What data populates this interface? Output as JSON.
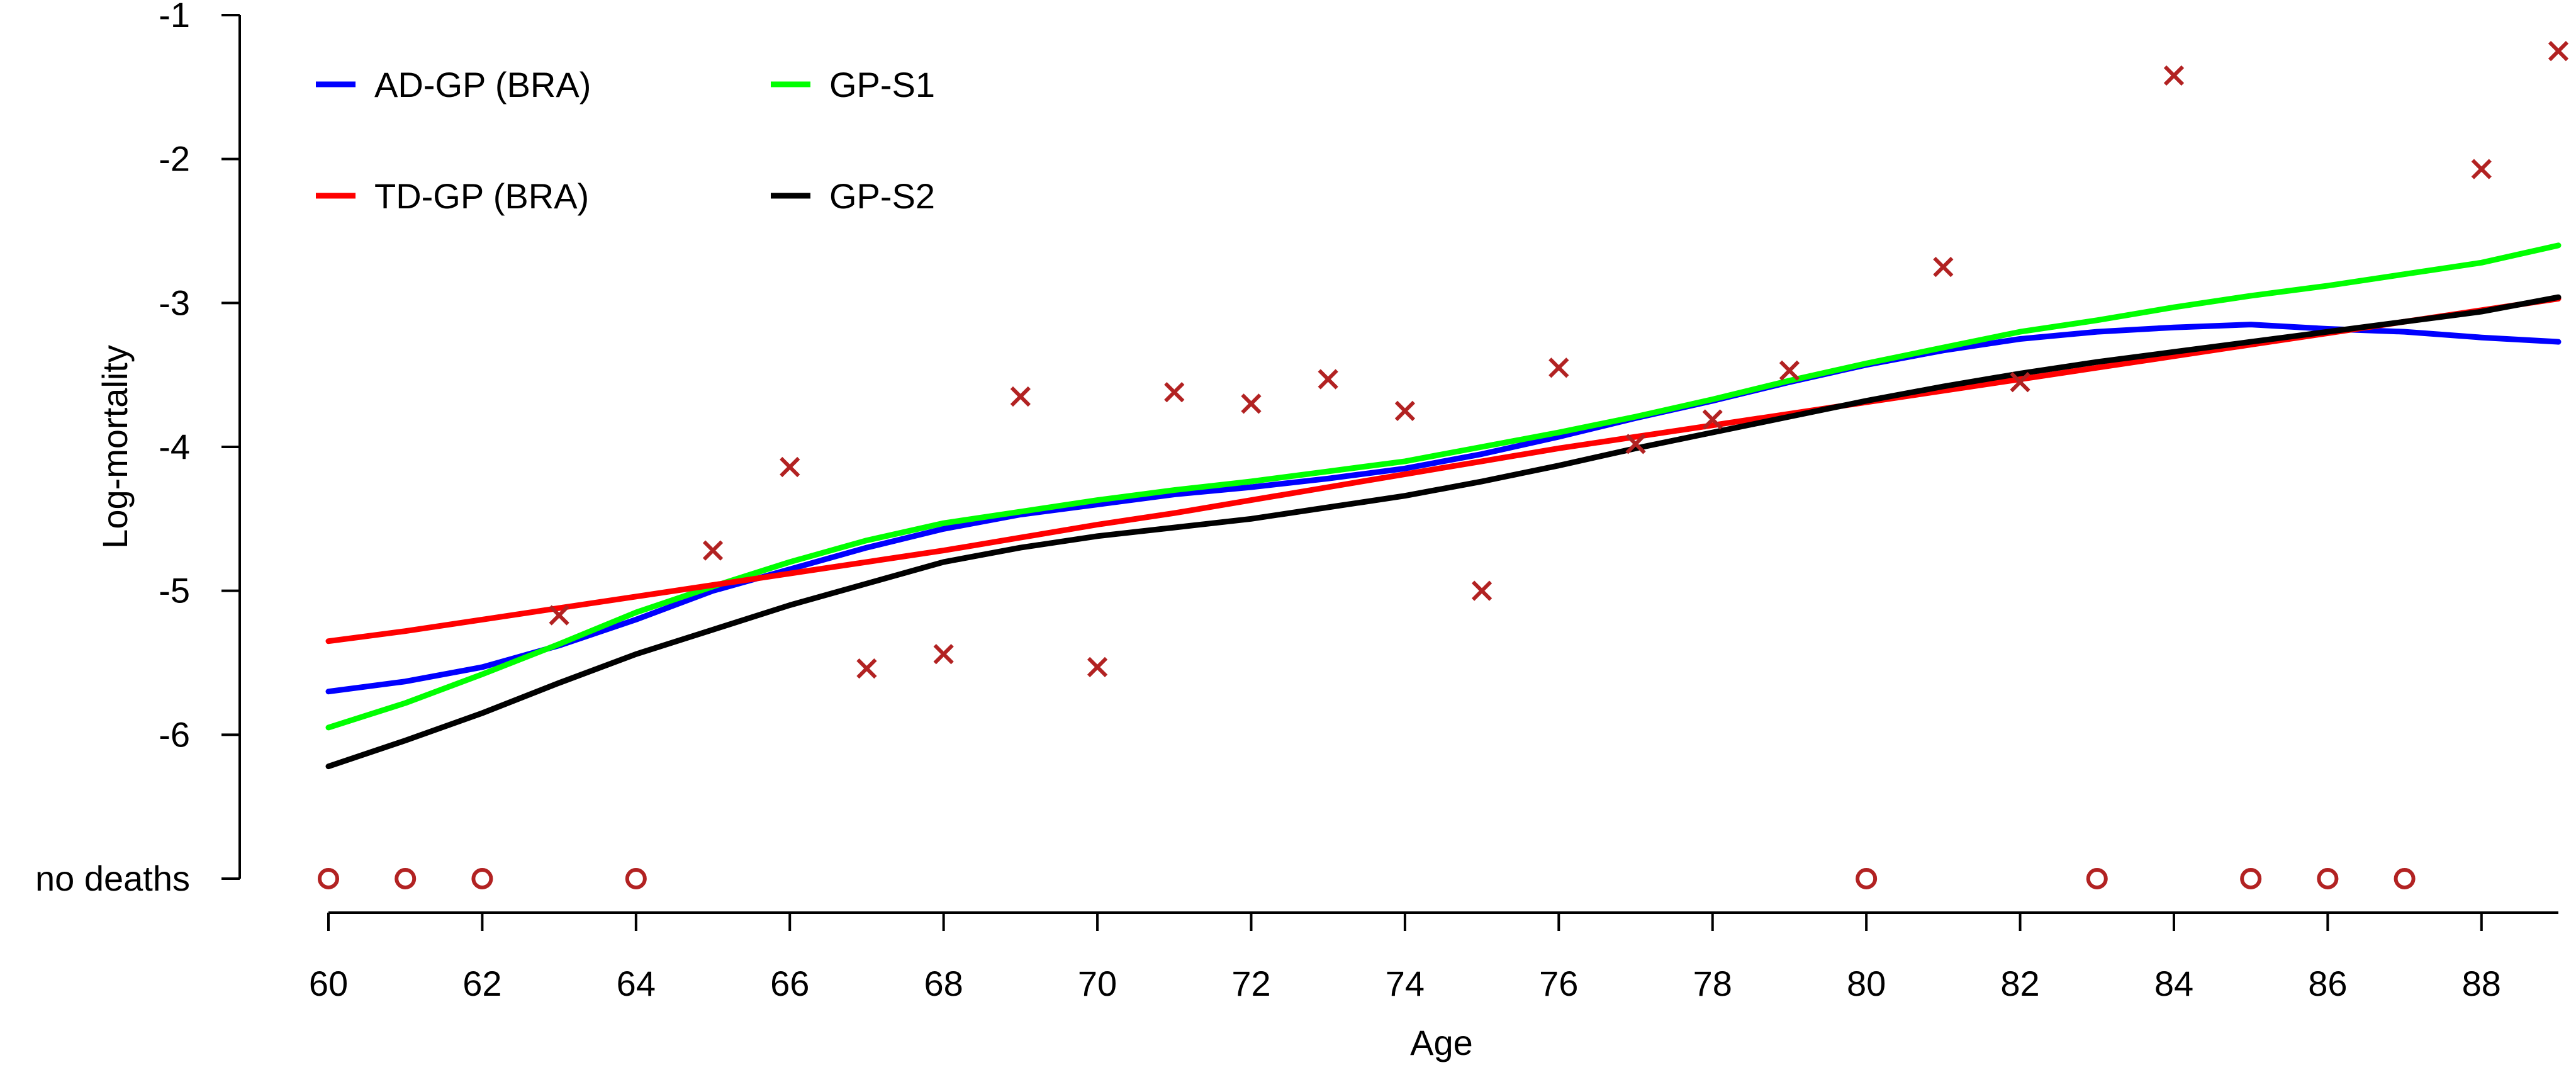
{
  "chart_data": {
    "type": "line",
    "xlabel": "Age",
    "ylabel": "Log-mortality",
    "xlim": [
      60,
      89
    ],
    "ylim": [
      -7,
      -1
    ],
    "x_ticks": [
      60,
      62,
      64,
      66,
      68,
      70,
      72,
      74,
      76,
      78,
      80,
      82,
      84,
      86,
      88
    ],
    "x_tick_labels": [
      "60",
      "62",
      "64",
      "66",
      "68",
      "70",
      "72",
      "74",
      "76",
      "78",
      "80",
      "82",
      "84",
      "86",
      "88"
    ],
    "y_ticks": [
      -1,
      -2,
      -3,
      -4,
      -5,
      -6,
      -7
    ],
    "y_tick_labels": [
      "-1",
      "-2",
      "-3",
      "-4",
      "-5",
      "-6",
      "no deaths"
    ],
    "grid": false,
    "legend_position": "top-left",
    "series": [
      {
        "name": "AD-GP (BRA)",
        "color": "#0000ff",
        "x": [
          60,
          61,
          62,
          63,
          64,
          65,
          66,
          67,
          68,
          69,
          70,
          71,
          72,
          73,
          74,
          75,
          76,
          77,
          78,
          79,
          80,
          81,
          82,
          83,
          84,
          85,
          86,
          87,
          88,
          89
        ],
        "y": [
          -5.7,
          -5.63,
          -5.53,
          -5.38,
          -5.2,
          -5.0,
          -4.85,
          -4.7,
          -4.57,
          -4.47,
          -4.4,
          -4.33,
          -4.28,
          -4.22,
          -4.15,
          -4.05,
          -3.93,
          -3.8,
          -3.68,
          -3.55,
          -3.43,
          -3.33,
          -3.25,
          -3.2,
          -3.17,
          -3.15,
          -3.18,
          -3.2,
          -3.24,
          -3.27
        ]
      },
      {
        "name": "GP-S1",
        "color": "#00ff00",
        "x": [
          60,
          61,
          62,
          63,
          64,
          65,
          66,
          67,
          68,
          69,
          70,
          71,
          72,
          73,
          74,
          75,
          76,
          77,
          78,
          79,
          80,
          81,
          82,
          83,
          84,
          85,
          86,
          87,
          88,
          89
        ],
        "y": [
          -5.95,
          -5.78,
          -5.58,
          -5.37,
          -5.15,
          -4.97,
          -4.8,
          -4.65,
          -4.53,
          -4.45,
          -4.37,
          -4.3,
          -4.24,
          -4.17,
          -4.1,
          -4.0,
          -3.9,
          -3.79,
          -3.67,
          -3.54,
          -3.42,
          -3.31,
          -3.2,
          -3.12,
          -3.03,
          -2.95,
          -2.88,
          -2.8,
          -2.72,
          -2.6
        ]
      },
      {
        "name": "TD-GP (BRA)",
        "color": "#ff0000",
        "x": [
          60,
          61,
          62,
          63,
          64,
          65,
          66,
          67,
          68,
          69,
          70,
          71,
          72,
          73,
          74,
          75,
          76,
          77,
          78,
          79,
          80,
          81,
          82,
          83,
          84,
          85,
          86,
          87,
          88,
          89
        ],
        "y": [
          -5.35,
          -5.28,
          -5.2,
          -5.12,
          -5.04,
          -4.96,
          -4.88,
          -4.8,
          -4.72,
          -4.63,
          -4.54,
          -4.46,
          -4.37,
          -4.28,
          -4.19,
          -4.1,
          -4.01,
          -3.93,
          -3.85,
          -3.77,
          -3.69,
          -3.61,
          -3.53,
          -3.45,
          -3.37,
          -3.29,
          -3.21,
          -3.13,
          -3.05,
          -2.97
        ]
      },
      {
        "name": "GP-S2",
        "color": "#000000",
        "x": [
          60,
          61,
          62,
          63,
          64,
          65,
          66,
          67,
          68,
          69,
          70,
          71,
          72,
          73,
          74,
          75,
          76,
          77,
          78,
          79,
          80,
          81,
          82,
          83,
          84,
          85,
          86,
          87,
          88,
          89
        ],
        "y": [
          -6.22,
          -6.04,
          -5.85,
          -5.64,
          -5.44,
          -5.27,
          -5.1,
          -4.95,
          -4.8,
          -4.7,
          -4.62,
          -4.56,
          -4.5,
          -4.42,
          -4.34,
          -4.24,
          -4.13,
          -4.01,
          -3.9,
          -3.79,
          -3.68,
          -3.58,
          -3.49,
          -3.41,
          -3.34,
          -3.27,
          -3.2,
          -3.13,
          -3.06,
          -2.96
        ]
      }
    ],
    "observed": {
      "color": "#b22222",
      "x": [
        63,
        65,
        66,
        67,
        68,
        69,
        70,
        71,
        72,
        73,
        74,
        75,
        76,
        77,
        78,
        79,
        81,
        82,
        84,
        88,
        89
      ],
      "y": [
        -5.17,
        -4.72,
        -4.14,
        -5.54,
        -5.44,
        -3.65,
        -5.53,
        -3.62,
        -3.7,
        -3.53,
        -3.75,
        -5.0,
        -3.45,
        -3.98,
        -3.81,
        -3.47,
        -2.75,
        -3.55,
        -1.42,
        -2.07,
        -1.25
      ]
    },
    "no_deaths": {
      "color": "#b22222",
      "x": [
        60,
        61,
        62,
        64,
        80,
        83,
        85,
        86,
        87
      ]
    }
  },
  "legend": {
    "items": [
      {
        "label": "AD-GP (BRA)",
        "color": "#0000ff"
      },
      {
        "label": "GP-S1",
        "color": "#00ff00"
      },
      {
        "label": "TD-GP (BRA)",
        "color": "#ff0000"
      },
      {
        "label": "GP-S2",
        "color": "#000000"
      }
    ]
  }
}
